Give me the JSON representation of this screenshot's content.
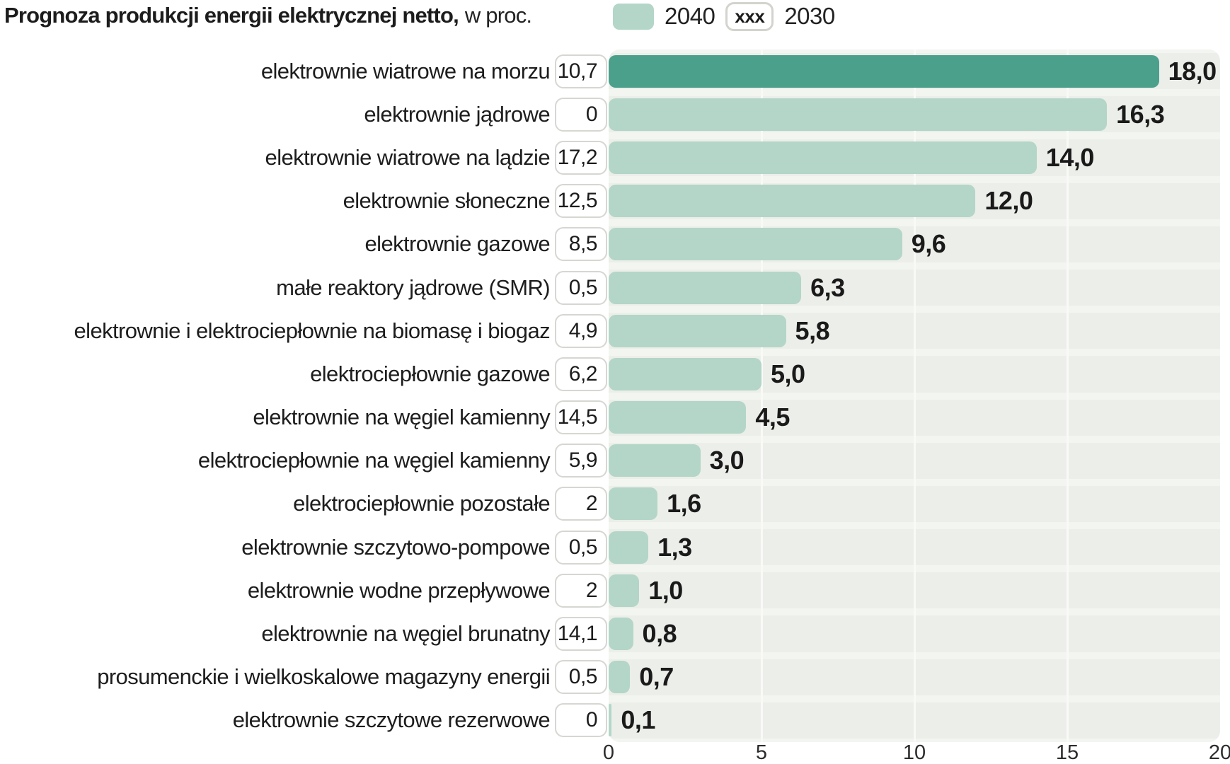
{
  "title": {
    "bold": "Prognoza produkcji energii elektrycznej netto,",
    "unit": "w proc."
  },
  "legend": {
    "label_2040": "2040",
    "box_2030_text": "xxx",
    "label_2030": "2030"
  },
  "colors": {
    "bar_default": "#b3d6c8",
    "bar_highlight": "#4ba08c",
    "plot_bg": "#eceee9",
    "box_border": "#d5d7d1",
    "text": "#1c1c1c"
  },
  "chart_data": {
    "type": "bar",
    "orientation": "horizontal",
    "title": "Prognoza produkcji energii elektrycznej netto, w proc.",
    "xlabel": "",
    "ylabel": "",
    "xlim": [
      0,
      20
    ],
    "x_ticks": [
      "0",
      "5",
      "10",
      "15",
      "20"
    ],
    "grid": "vertical",
    "legend_position": "top",
    "series_names": [
      "2040",
      "2030"
    ],
    "rows": [
      {
        "label": "elektrownie wiatrowe na morzu",
        "value_2030": "10,7",
        "value_2040": 18.0,
        "label_2040": "18,0",
        "highlight": true
      },
      {
        "label": "elektrownie jądrowe",
        "value_2030": "0",
        "value_2040": 16.3,
        "label_2040": "16,3",
        "highlight": false
      },
      {
        "label": "elektrownie wiatrowe na lądzie",
        "value_2030": "17,2",
        "value_2040": 14.0,
        "label_2040": "14,0",
        "highlight": false
      },
      {
        "label": "elektrownie słoneczne",
        "value_2030": "12,5",
        "value_2040": 12.0,
        "label_2040": "12,0",
        "highlight": false
      },
      {
        "label": "elektrownie gazowe",
        "value_2030": "8,5",
        "value_2040": 9.6,
        "label_2040": "9,6",
        "highlight": false
      },
      {
        "label": "małe reaktory jądrowe (SMR)",
        "value_2030": "0,5",
        "value_2040": 6.3,
        "label_2040": "6,3",
        "highlight": false
      },
      {
        "label": "elektrownie i elektrociepłownie na biomasę i biogaz",
        "value_2030": "4,9",
        "value_2040": 5.8,
        "label_2040": "5,8",
        "highlight": false
      },
      {
        "label": "elektrociepłownie gazowe",
        "value_2030": "6,2",
        "value_2040": 5.0,
        "label_2040": "5,0",
        "highlight": false
      },
      {
        "label": "elektrownie na węgiel kamienny",
        "value_2030": "14,5",
        "value_2040": 4.5,
        "label_2040": "4,5",
        "highlight": false
      },
      {
        "label": "elektrociepłownie na węgiel kamienny",
        "value_2030": "5,9",
        "value_2040": 3.0,
        "label_2040": "3,0",
        "highlight": false
      },
      {
        "label": "elektrociepłownie pozostałe",
        "value_2030": "2",
        "value_2040": 1.6,
        "label_2040": "1,6",
        "highlight": false
      },
      {
        "label": "elektrownie szczytowo-pompowe",
        "value_2030": "0,5",
        "value_2040": 1.3,
        "label_2040": "1,3",
        "highlight": false
      },
      {
        "label": "elektrownie wodne przepływowe",
        "value_2030": "2",
        "value_2040": 1.0,
        "label_2040": "1,0",
        "highlight": false
      },
      {
        "label": "elektrownie na węgiel brunatny",
        "value_2030": "14,1",
        "value_2040": 0.8,
        "label_2040": "0,8",
        "highlight": false
      },
      {
        "label": "prosumenckie i wielkoskalowe magazyny energii",
        "value_2030": "0,5",
        "value_2040": 0.7,
        "label_2040": "0,7",
        "highlight": false
      },
      {
        "label": "elektrownie szczytowe rezerwowe",
        "value_2030": "0",
        "value_2040": 0.1,
        "label_2040": "0,1",
        "highlight": false
      }
    ]
  }
}
